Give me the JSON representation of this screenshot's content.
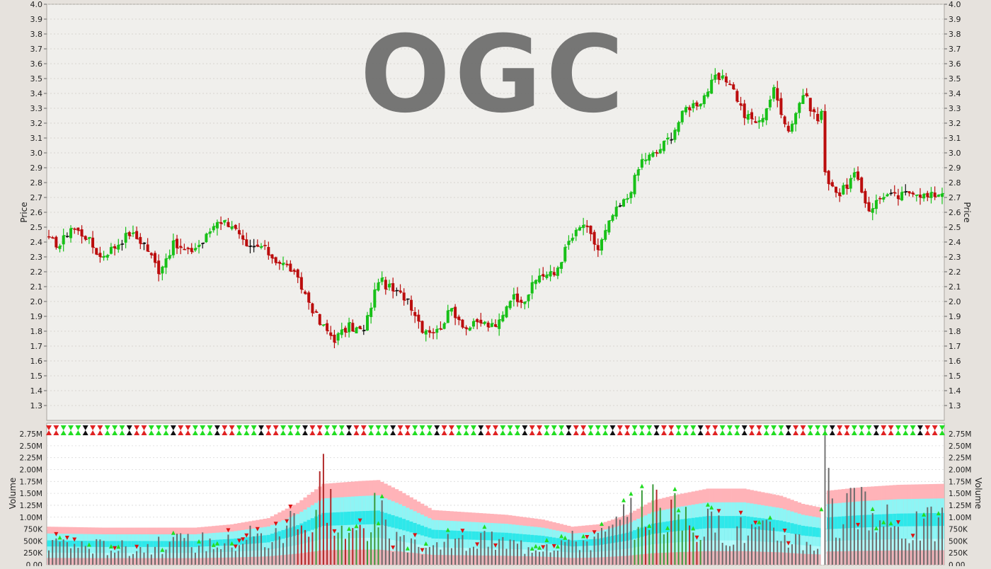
{
  "symbol": "OGC",
  "chart_data": [
    {
      "type": "candlestick",
      "ylabel": "Price",
      "ylim": [
        1.2,
        4.0
      ],
      "yticks": [
        "1.3",
        "1.4",
        "1.5",
        "1.6",
        "1.7",
        "1.8",
        "1.9",
        "2.0",
        "2.1",
        "2.2",
        "2.3",
        "2.4",
        "2.5",
        "2.6",
        "2.7",
        "2.8",
        "2.9",
        "3.0",
        "3.1",
        "3.2",
        "3.3",
        "3.4",
        "3.5",
        "3.6",
        "3.7",
        "3.8",
        "3.9",
        "4.0"
      ],
      "grid": true,
      "price_anchors": [
        [
          0,
          2.41
        ],
        [
          3,
          2.38
        ],
        [
          6,
          2.5
        ],
        [
          10,
          2.44
        ],
        [
          14,
          2.3
        ],
        [
          18,
          2.37
        ],
        [
          22,
          2.46
        ],
        [
          26,
          2.39
        ],
        [
          30,
          2.21
        ],
        [
          34,
          2.38
        ],
        [
          38,
          2.33
        ],
        [
          42,
          2.4
        ],
        [
          46,
          2.55
        ],
        [
          50,
          2.52
        ],
        [
          54,
          2.35
        ],
        [
          58,
          2.37
        ],
        [
          62,
          2.28
        ],
        [
          66,
          2.22
        ],
        [
          70,
          2.05
        ],
        [
          74,
          1.85
        ],
        [
          78,
          1.75
        ],
        [
          82,
          1.83
        ],
        [
          86,
          1.8
        ],
        [
          90,
          2.15
        ],
        [
          94,
          2.07
        ],
        [
          98,
          2.02
        ],
        [
          102,
          1.82
        ],
        [
          106,
          1.8
        ],
        [
          110,
          1.95
        ],
        [
          114,
          1.82
        ],
        [
          118,
          1.86
        ],
        [
          122,
          1.82
        ],
        [
          126,
          2.03
        ],
        [
          130,
          2.02
        ],
        [
          134,
          2.18
        ],
        [
          138,
          2.18
        ],
        [
          142,
          2.4
        ],
        [
          146,
          2.52
        ],
        [
          150,
          2.35
        ],
        [
          154,
          2.58
        ],
        [
          158,
          2.7
        ],
        [
          162,
          2.95
        ],
        [
          166,
          3.0
        ],
        [
          170,
          3.12
        ],
        [
          174,
          3.3
        ],
        [
          178,
          3.35
        ],
        [
          182,
          3.5
        ],
        [
          186,
          3.48
        ],
        [
          190,
          3.25
        ],
        [
          194,
          3.2
        ],
        [
          198,
          3.42
        ],
        [
          202,
          3.15
        ],
        [
          206,
          3.4
        ],
        [
          210,
          3.22
        ],
        [
          211,
          3.28
        ],
        [
          212,
          2.85
        ],
        [
          216,
          2.72
        ],
        [
          220,
          2.85
        ],
        [
          224,
          2.62
        ],
        [
          228,
          2.72
        ],
        [
          232,
          2.7
        ],
        [
          236,
          2.75
        ],
        [
          240,
          2.7
        ],
        [
          244,
          2.74
        ]
      ]
    },
    {
      "type": "bar",
      "ylabel": "Volume",
      "ylim": [
        0,
        2.9
      ],
      "yticks": [
        "0.00",
        "250K",
        "500K",
        "750K",
        "1.00M",
        "1.25M",
        "1.50M",
        "1.75M",
        "2.00M",
        "2.25M",
        "2.50M",
        "2.75M"
      ],
      "volume_anchors": [
        [
          0,
          0.55
        ],
        [
          10,
          0.45
        ],
        [
          20,
          0.4
        ],
        [
          30,
          0.45
        ],
        [
          40,
          0.55
        ],
        [
          50,
          0.5
        ],
        [
          55,
          0.72
        ],
        [
          60,
          0.55
        ],
        [
          65,
          0.8
        ],
        [
          68,
          1.6
        ],
        [
          70,
          0.9
        ],
        [
          72,
          0.8
        ],
        [
          75,
          2.25
        ],
        [
          78,
          1.0
        ],
        [
          82,
          0.6
        ],
        [
          86,
          0.95
        ],
        [
          90,
          1.25
        ],
        [
          94,
          0.55
        ],
        [
          100,
          0.4
        ],
        [
          110,
          0.5
        ],
        [
          120,
          0.55
        ],
        [
          130,
          0.45
        ],
        [
          140,
          0.55
        ],
        [
          150,
          0.6
        ],
        [
          155,
          0.85
        ],
        [
          160,
          1.15
        ],
        [
          165,
          1.45
        ],
        [
          170,
          1.2
        ],
        [
          175,
          0.95
        ],
        [
          180,
          0.9
        ],
        [
          190,
          0.8
        ],
        [
          200,
          0.7
        ],
        [
          205,
          0.6
        ],
        [
          210,
          0.5
        ],
        [
          213,
          2.65
        ],
        [
          215,
          0.9
        ],
        [
          220,
          1.4
        ],
        [
          225,
          1.0
        ],
        [
          235,
          0.85
        ],
        [
          244,
          1.0
        ]
      ],
      "band_anchors": [
        [
          0,
          0.8
        ],
        [
          15,
          0.78
        ],
        [
          30,
          0.78
        ],
        [
          40,
          0.78
        ],
        [
          50,
          0.85
        ],
        [
          60,
          0.98
        ],
        [
          68,
          1.3
        ],
        [
          75,
          1.7
        ],
        [
          85,
          1.76
        ],
        [
          90,
          1.78
        ],
        [
          96,
          1.55
        ],
        [
          105,
          1.15
        ],
        [
          115,
          1.1
        ],
        [
          125,
          1.05
        ],
        [
          135,
          0.95
        ],
        [
          143,
          0.8
        ],
        [
          150,
          0.85
        ],
        [
          158,
          1.05
        ],
        [
          165,
          1.35
        ],
        [
          172,
          1.48
        ],
        [
          180,
          1.6
        ],
        [
          190,
          1.6
        ],
        [
          200,
          1.45
        ],
        [
          206,
          1.28
        ],
        [
          211,
          1.2
        ],
        [
          212,
          1.55
        ],
        [
          222,
          1.63
        ],
        [
          232,
          1.68
        ],
        [
          244,
          1.7
        ]
      ]
    }
  ]
}
